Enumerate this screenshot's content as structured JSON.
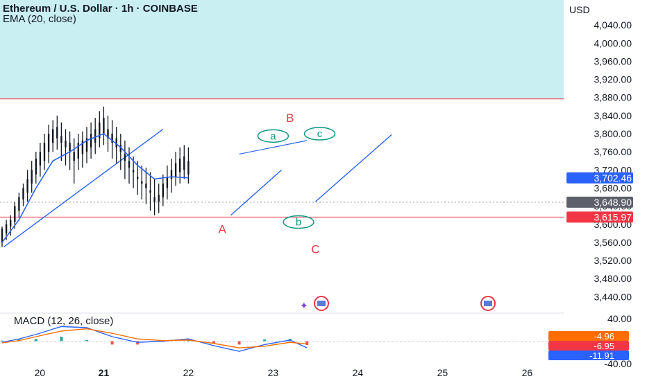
{
  "header": {
    "title": "Ethereum / U.S. Dollar · 1h · COINBASE",
    "indicator": "EMA (20, close)",
    "currency": "USD"
  },
  "macd_header": {
    "label": "MACD (12, 26, close)"
  },
  "colors": {
    "up_candle": "#131722",
    "ema": "#2962ff",
    "trendline": "#2962ff",
    "zone_fill": "#c9eff2",
    "red_line": "#f23645",
    "wave_major": "#e53945",
    "wave_minor": "#089981",
    "macd_line": "#2962ff",
    "signal_line": "#ff6d00",
    "hist_pos": "#26a69a",
    "hist_neg": "#ef5350"
  },
  "chart_data": [
    {
      "type": "line",
      "title": "Ethereum / U.S. Dollar · 1h · COINBASE",
      "ylabel": "USD",
      "ylim": [
        3410,
        4080
      ],
      "x_ticks": [
        "20",
        "21",
        "22",
        "23",
        "24",
        "25",
        "26"
      ],
      "y_ticks": [
        "4,040.00",
        "4,000.00",
        "3,960.00",
        "3,920.00",
        "3,880.00",
        "3,840.00",
        "3,800.00",
        "3,760.00",
        "3,720.00",
        "3,680.00",
        "3,640.00",
        "3,600.00",
        "3,560.00",
        "3,520.00",
        "3,480.00",
        "3,440.00"
      ],
      "price_tags": [
        {
          "label": "3,702.46",
          "value": 3702.46,
          "role": "ema"
        },
        {
          "label": "3,648.90",
          "value": 3648.9,
          "role": "last"
        },
        {
          "label": "3,615.97",
          "value": 3615.97,
          "role": "level"
        }
      ],
      "zone_bottom": 3877,
      "level_line": 3615.97,
      "candles": [
        [
          19.8,
          3560,
          3595,
          3550,
          3590
        ],
        [
          19.85,
          3580,
          3610,
          3565,
          3600
        ],
        [
          19.9,
          3595,
          3620,
          3575,
          3610
        ],
        [
          19.95,
          3605,
          3650,
          3590,
          3640
        ],
        [
          20.0,
          3630,
          3670,
          3615,
          3660
        ],
        [
          20.05,
          3655,
          3690,
          3640,
          3680
        ],
        [
          20.1,
          3670,
          3720,
          3650,
          3700
        ],
        [
          20.15,
          3690,
          3740,
          3670,
          3720
        ],
        [
          20.2,
          3710,
          3760,
          3690,
          3745
        ],
        [
          20.25,
          3730,
          3780,
          3705,
          3760
        ],
        [
          20.3,
          3740,
          3800,
          3720,
          3780
        ],
        [
          20.35,
          3760,
          3820,
          3735,
          3800
        ],
        [
          20.4,
          3780,
          3830,
          3760,
          3810
        ],
        [
          20.45,
          3790,
          3840,
          3765,
          3815
        ],
        [
          20.5,
          3780,
          3825,
          3740,
          3795
        ],
        [
          20.55,
          3770,
          3810,
          3730,
          3785
        ],
        [
          20.6,
          3760,
          3805,
          3720,
          3780
        ],
        [
          20.65,
          3740,
          3790,
          3690,
          3760
        ],
        [
          20.7,
          3745,
          3800,
          3720,
          3780
        ],
        [
          20.75,
          3755,
          3805,
          3725,
          3785
        ],
        [
          20.8,
          3760,
          3815,
          3735,
          3790
        ],
        [
          20.85,
          3770,
          3825,
          3745,
          3800
        ],
        [
          20.9,
          3780,
          3835,
          3755,
          3810
        ],
        [
          20.95,
          3790,
          3850,
          3770,
          3825
        ],
        [
          21.0,
          3800,
          3860,
          3775,
          3835
        ],
        [
          21.05,
          3790,
          3840,
          3760,
          3810
        ],
        [
          21.1,
          3780,
          3830,
          3745,
          3800
        ],
        [
          21.15,
          3770,
          3815,
          3735,
          3790
        ],
        [
          21.2,
          3760,
          3800,
          3720,
          3775
        ],
        [
          21.25,
          3740,
          3785,
          3700,
          3755
        ],
        [
          21.3,
          3725,
          3770,
          3690,
          3740
        ],
        [
          21.35,
          3715,
          3750,
          3680,
          3720
        ],
        [
          21.4,
          3700,
          3740,
          3665,
          3705
        ],
        [
          21.45,
          3690,
          3730,
          3655,
          3695
        ],
        [
          21.5,
          3680,
          3725,
          3645,
          3690
        ],
        [
          21.55,
          3670,
          3715,
          3630,
          3675
        ],
        [
          21.6,
          3660,
          3700,
          3620,
          3650
        ],
        [
          21.65,
          3650,
          3690,
          3625,
          3665
        ],
        [
          21.7,
          3660,
          3710,
          3640,
          3690
        ],
        [
          21.75,
          3680,
          3730,
          3655,
          3705
        ],
        [
          21.8,
          3700,
          3745,
          3670,
          3720
        ],
        [
          21.85,
          3705,
          3760,
          3685,
          3735
        ],
        [
          21.9,
          3715,
          3770,
          3690,
          3745
        ],
        [
          21.95,
          3720,
          3775,
          3700,
          3750
        ],
        [
          22.0,
          3710,
          3770,
          3690,
          3740
        ]
      ],
      "series": [
        {
          "name": "EMA (20, close)",
          "x": [
            19.8,
            20.0,
            20.2,
            20.4,
            20.6,
            20.8,
            21.0,
            21.2,
            21.4,
            21.6,
            21.8,
            22.0
          ],
          "y": [
            3560,
            3610,
            3680,
            3740,
            3760,
            3785,
            3800,
            3770,
            3730,
            3700,
            3705,
            3702.46
          ]
        }
      ],
      "annotations": [
        {
          "text": "A",
          "x": 22.4,
          "y": 3590,
          "style": "major"
        },
        {
          "text": "B",
          "x": 23.2,
          "y": 3835,
          "style": "major"
        },
        {
          "text": "C",
          "x": 23.5,
          "y": 3545,
          "style": "major"
        },
        {
          "text": "a",
          "x": 23.0,
          "y": 3795,
          "style": "minor"
        },
        {
          "text": "b",
          "x": 23.3,
          "y": 3605,
          "style": "minor"
        },
        {
          "text": "c",
          "x": 23.55,
          "y": 3800,
          "style": "minor"
        }
      ]
    },
    {
      "type": "line",
      "title": "MACD (12, 26, close)",
      "ylim": [
        -40,
        40
      ],
      "y_ticks": [
        "40.00",
        "-40.00"
      ],
      "value_tags": [
        {
          "label": "-4.96",
          "value": -4.96,
          "color": "#ff6d00"
        },
        {
          "label": "-6.95",
          "value": -6.95,
          "color": "#f23645"
        },
        {
          "label": "-11.91",
          "value": -11.91,
          "color": "#2962ff"
        }
      ],
      "series": [
        {
          "name": "MACD",
          "x": [
            19.8,
            20.0,
            20.2,
            20.5,
            20.8,
            21.1,
            21.4,
            21.7,
            22.0,
            22.3,
            22.6,
            22.9,
            23.2,
            23.4
          ],
          "y": [
            -2,
            4,
            12,
            26,
            24,
            8,
            -2,
            0,
            4,
            -8,
            -18,
            -6,
            2,
            -11.91
          ]
        },
        {
          "name": "Signal",
          "x": [
            19.8,
            20.0,
            20.2,
            20.5,
            20.8,
            21.1,
            21.4,
            21.7,
            22.0,
            22.3,
            22.6,
            22.9,
            23.2,
            23.4
          ],
          "y": [
            -3,
            1,
            8,
            18,
            22,
            14,
            4,
            1,
            2,
            -4,
            -12,
            -9,
            -2,
            -4.96
          ]
        },
        {
          "name": "Histogram",
          "x": [
            19.8,
            20.0,
            20.2,
            20.5,
            20.8,
            21.1,
            21.4,
            21.7,
            22.0,
            22.3,
            22.6,
            22.9,
            23.2,
            23.4
          ],
          "y": [
            1,
            3,
            4,
            8,
            2,
            -6,
            -6,
            -1,
            2,
            -4,
            -6,
            3,
            4,
            -6.95
          ]
        }
      ]
    }
  ]
}
